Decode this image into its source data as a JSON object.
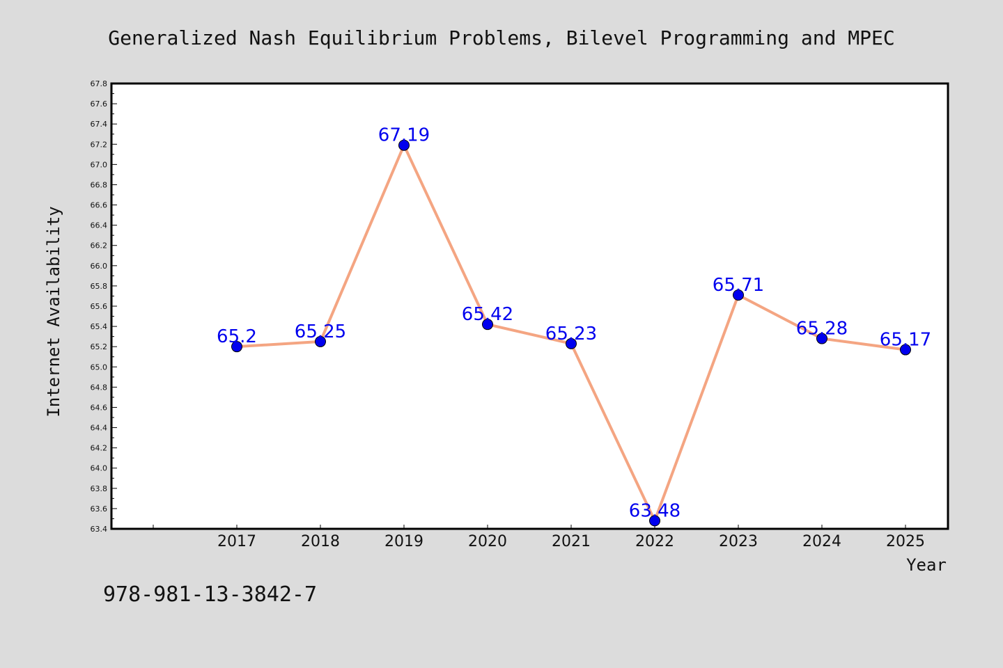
{
  "chart_data": {
    "type": "line",
    "title": "Generalized Nash Equilibrium Problems, Bilevel Programming and MPEC",
    "xlabel": "Year",
    "ylabel": "Internet Availability",
    "categories": [
      "2017",
      "2018",
      "2019",
      "2020",
      "2021",
      "2022",
      "2023",
      "2024",
      "2025"
    ],
    "series": [
      {
        "values": [
          65.2,
          65.25,
          67.19,
          65.42,
          65.23,
          63.48,
          65.71,
          65.28,
          65.17
        ],
        "labels": [
          "65.2",
          "65.25",
          "67.19",
          "65.42",
          "65.23",
          "63.48",
          "65.71",
          "65.28",
          "65.17"
        ],
        "line_color": "#f4a582",
        "marker_color": "#0000ee"
      }
    ],
    "ylim": [
      63.4,
      67.8
    ],
    "yticks": [
      "63.4",
      "63.6",
      "63.8",
      "64.0",
      "64.2",
      "64.4",
      "64.6",
      "64.8",
      "65.0",
      "65.2",
      "65.4",
      "65.6",
      "65.8",
      "66.0",
      "66.2",
      "66.4",
      "66.6",
      "66.8",
      "67.0",
      "67.2",
      "67.4",
      "67.6",
      "67.8"
    ],
    "grid": false,
    "legend": "none"
  },
  "footer": {
    "isbn": "978-981-13-3842-7"
  },
  "colors": {
    "background": "#dcdcdc",
    "plot_area": "#ffffff",
    "line": "#f4a582",
    "marker": "#0000ee",
    "label": "#0000ee"
  }
}
